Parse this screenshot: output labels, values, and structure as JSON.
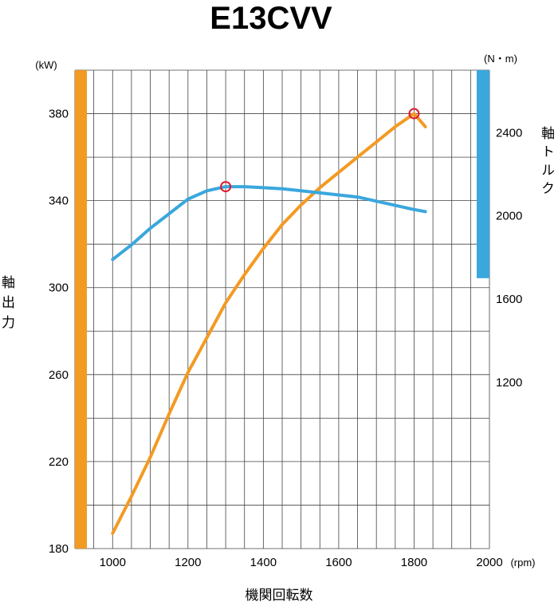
{
  "chart_data": {
    "type": "line",
    "title": "E13CVV",
    "xlabel": "機関回転数",
    "x_unit": "(rpm)",
    "ylabel_left": "軸出力",
    "y_left_unit": "(kW)",
    "ylabel_right": "軸トルク",
    "y_right_unit": "(N・m)",
    "xlim": [
      900,
      2000
    ],
    "ylim_left": [
      180,
      400
    ],
    "ylim_right": [
      400,
      2700
    ],
    "x_ticks": [
      "1000",
      "1200",
      "1400",
      "1600",
      "1800",
      "2000"
    ],
    "y_left_ticks": [
      "180",
      "220",
      "260",
      "300",
      "340",
      "380"
    ],
    "y_right_ticks": [
      "1200",
      "1600",
      "2000",
      "2400"
    ],
    "grid": true,
    "colors": {
      "power": "#f39a23",
      "torque": "#3aa7dd",
      "marker": "#e0182b",
      "grid": "#444444"
    },
    "series": [
      {
        "id": "power",
        "axis": "left",
        "x": [
          1000,
          1050,
          1100,
          1150,
          1200,
          1250,
          1300,
          1350,
          1400,
          1450,
          1500,
          1550,
          1600,
          1650,
          1700,
          1750,
          1800,
          1830
        ],
        "values": [
          187,
          204,
          222,
          242,
          261,
          277,
          293,
          306,
          318,
          329,
          338,
          346,
          353,
          360,
          367,
          374,
          380,
          374
        ]
      },
      {
        "id": "torque",
        "axis": "right",
        "x": [
          1000,
          1050,
          1100,
          1150,
          1200,
          1250,
          1300,
          1350,
          1400,
          1450,
          1500,
          1550,
          1600,
          1650,
          1700,
          1750,
          1800,
          1830
        ],
        "values": [
          1790,
          1860,
          1940,
          2010,
          2080,
          2120,
          2140,
          2140,
          2135,
          2130,
          2120,
          2110,
          2100,
          2090,
          2070,
          2050,
          2030,
          2020
        ]
      }
    ],
    "markers": [
      {
        "series": "torque",
        "x": 1300,
        "value": 2140
      },
      {
        "series": "power",
        "x": 1800,
        "value": 380
      }
    ],
    "left_bar": {
      "color": "#f39a23",
      "from": 180,
      "to": 400
    },
    "right_bar": {
      "color": "#3aa7dd",
      "from": 1700,
      "to": 2700
    }
  }
}
